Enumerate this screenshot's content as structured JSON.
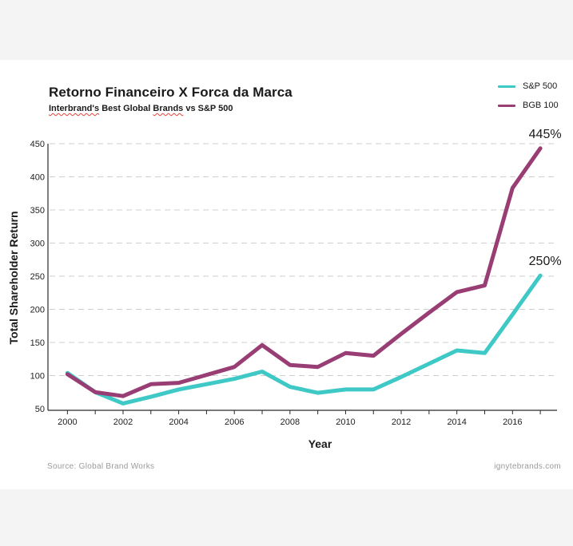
{
  "header": {
    "title": "Retorno Financeiro X Forca da Marca",
    "subtitle_part1": "Interbrand's",
    "subtitle_part2": " Best Global ",
    "subtitle_part3": "Brands",
    "subtitle_part4": " vs ",
    "subtitle_part5": "S&P 500"
  },
  "footer": {
    "source": "Source: Global Brand Works",
    "credit": "ignytebrands.com"
  },
  "colors": {
    "sp500": "#3ec8c6",
    "bgb100": "#993e74",
    "grid": "#cfcfcf"
  },
  "chart_data": {
    "type": "line",
    "xlabel": "Year",
    "ylabel": "Total Shareholder Return",
    "xlim": [
      1999.3,
      2017.6
    ],
    "ylim": [
      50,
      450
    ],
    "x_ticks": [
      2000,
      2002,
      2004,
      2006,
      2008,
      2010,
      2012,
      2014,
      2016
    ],
    "x_tick_labels": [
      "2000",
      "2002",
      "2004",
      "2006",
      "2008",
      "2010",
      "2012",
      "2014",
      "2016"
    ],
    "y_ticks": [
      50,
      100,
      150,
      200,
      250,
      300,
      350,
      400,
      450
    ],
    "y_tick_labels": [
      "50",
      "100",
      "150",
      "200",
      "250",
      "300",
      "350",
      "400",
      "450"
    ],
    "grid": true,
    "legend_position": "top-right",
    "series": [
      {
        "name": "S&P 500",
        "x": [
          2000,
          2001,
          2002,
          2003,
          2004,
          2005,
          2006,
          2007,
          2008,
          2009,
          2010,
          2011,
          2012,
          2013,
          2014,
          2015,
          2016,
          2017
        ],
        "values": [
          104,
          75,
          58,
          68,
          79,
          87,
          95,
          106,
          83,
          74,
          79,
          79,
          98,
          118,
          138,
          134,
          192,
          251
        ]
      },
      {
        "name": "BGB 100",
        "x": [
          2000,
          2001,
          2002,
          2003,
          2004,
          2005,
          2006,
          2007,
          2008,
          2009,
          2010,
          2011,
          2012,
          2013,
          2014,
          2015,
          2016,
          2017
        ],
        "values": [
          102,
          75,
          69,
          87,
          89,
          101,
          113,
          146,
          116,
          113,
          134,
          130,
          163,
          195,
          226,
          236,
          383,
          443
        ]
      }
    ],
    "annotations": [
      {
        "text": "445%",
        "x": 2017,
        "y": 443
      },
      {
        "text": "250%",
        "x": 2017,
        "y": 251
      }
    ]
  }
}
